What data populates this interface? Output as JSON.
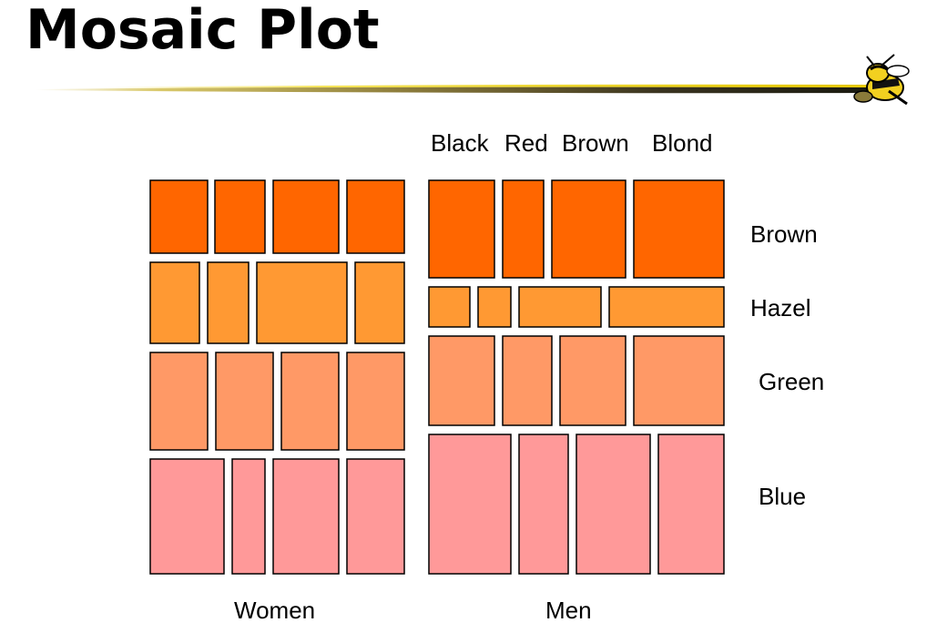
{
  "title": "Mosaic Plot",
  "hair_labels": [
    "Black",
    "Red",
    "Brown",
    "Blond"
  ],
  "eye_labels": [
    "Brown",
    "Hazel",
    "Green",
    "Blue"
  ],
  "group_labels": [
    "Women",
    "Men"
  ],
  "colors": {
    "eye_brown": "#ff6600",
    "eye_hazel": "#ff9933",
    "eye_green": "#ff9966",
    "eye_blue": "#ff9999",
    "outline": "#000000"
  },
  "icons": {
    "mascot": "yellow-jacket-mascot-icon"
  }
}
